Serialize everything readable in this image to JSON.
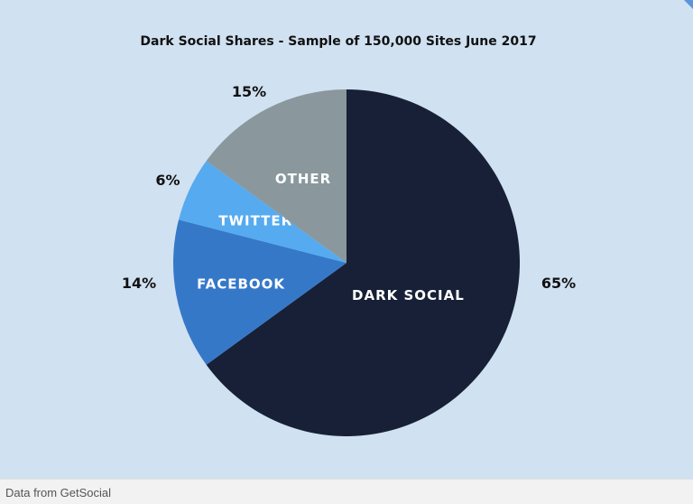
{
  "caption": "Data from GetSocial",
  "colors": {
    "panel_background": "#d0e1f1",
    "dark_social": "#172036",
    "facebook": "#3678c8",
    "twitter": "#56aaef",
    "other": "#8a989d"
  },
  "chart_data": {
    "type": "pie",
    "title": "Dark Social Shares - Sample of 150,000 Sites June 2017",
    "start_angle_deg": 0,
    "direction": "clockwise",
    "slices": [
      {
        "label": "DARK SOCIAL",
        "value": 65,
        "value_label": "65%",
        "color": "#172036"
      },
      {
        "label": "FACEBOOK",
        "value": 14,
        "value_label": "14%",
        "color": "#3678c8"
      },
      {
        "label": "TWITTER",
        "value": 6,
        "value_label": "6%",
        "color": "#56aaef"
      },
      {
        "label": "OTHER",
        "value": 15,
        "value_label": "15%",
        "color": "#8a989d"
      }
    ]
  }
}
